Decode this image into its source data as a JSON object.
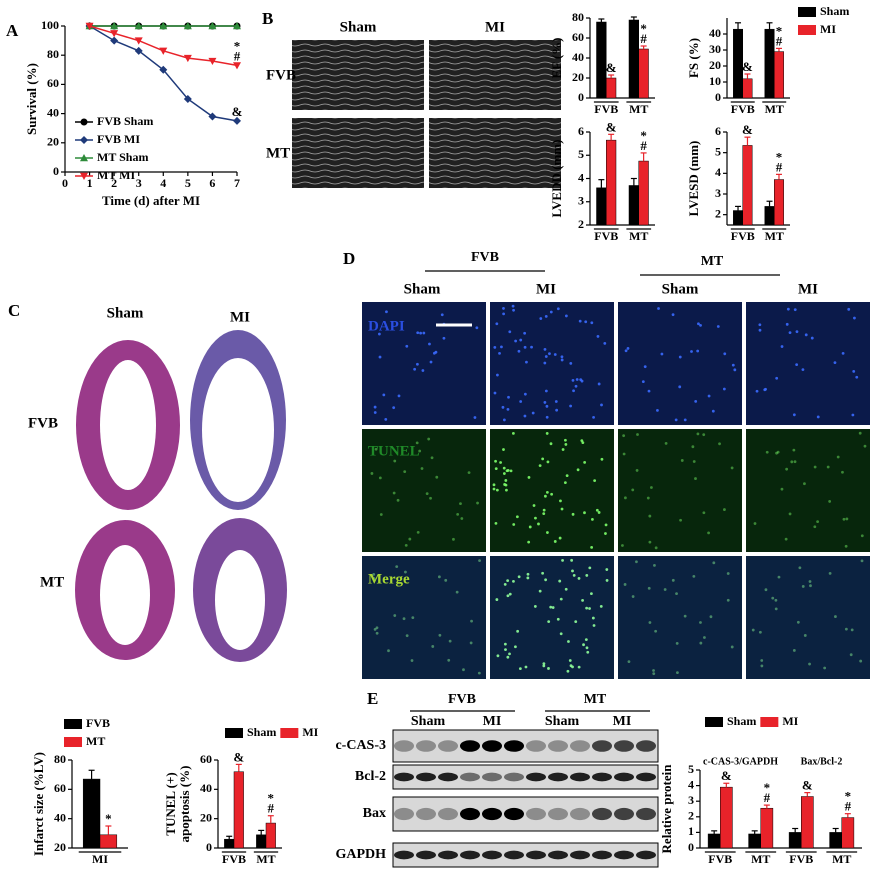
{
  "labels": {
    "panels": [
      "A",
      "B",
      "C",
      "D",
      "E"
    ],
    "b": {
      "sham": "Sham",
      "mi": "MI",
      "fvb": "FVB",
      "mt": "MT"
    },
    "c": {
      "sham": "Sham",
      "mi": "MI",
      "fvb": "FVB",
      "mt": "MT"
    },
    "d": {
      "fvb": "FVB",
      "mt": "MT",
      "sham1": "Sham",
      "mi1": "MI",
      "sham2": "Sham",
      "mi2": "MI",
      "dapi": "DAPI",
      "tunel": "TUNEL",
      "merge": "Merge"
    },
    "e": {
      "fvb": "FVB",
      "mt": "MT",
      "sham1": "Sham",
      "mi1": "MI",
      "sham2": "Sham",
      "mi2": "MI",
      "rows": [
        "c-CAS-3",
        "Bcl-2",
        "Bax",
        "GAPDH"
      ]
    }
  },
  "chart_data": [
    {
      "type": "line",
      "ylabel": "Survival (%)",
      "xlabel": "Time (d) after MI",
      "x": [
        1,
        2,
        3,
        4,
        5,
        6,
        7
      ],
      "xlim": [
        0,
        7
      ],
      "xticks": [
        0,
        1,
        2,
        3,
        4,
        5,
        6,
        7
      ],
      "ylim": [
        0,
        100
      ],
      "yticks": [
        0,
        20,
        40,
        60,
        80,
        100
      ],
      "legend": true,
      "series": [
        {
          "name": "FVB Sham",
          "color": "#000000",
          "marker": "circle",
          "values": [
            100,
            100,
            100,
            100,
            100,
            100,
            100
          ]
        },
        {
          "name": "FVB MI",
          "color": "#1f3a7a",
          "marker": "diamond",
          "values": [
            100,
            90,
            83,
            70,
            50,
            38,
            35
          ],
          "annotations": [
            null,
            null,
            null,
            null,
            null,
            null,
            [
              "&"
            ]
          ]
        },
        {
          "name": "MT Sham",
          "color": "#2e8b3a",
          "marker": "triangle",
          "values": [
            100,
            100,
            100,
            100,
            100,
            100,
            100
          ]
        },
        {
          "name": "MT MI",
          "color": "#e8232a",
          "marker": "triangle-down",
          "values": [
            100,
            95,
            90,
            83,
            78,
            76,
            73
          ],
          "annotations": [
            null,
            null,
            null,
            null,
            null,
            null,
            [
              "*",
              "#"
            ]
          ]
        }
      ]
    },
    {
      "type": "bar",
      "ylabel": "EF (%)",
      "categories": [
        "FVB",
        "MT"
      ],
      "ylim": [
        0,
        80
      ],
      "yticks": [
        0,
        20,
        40,
        60,
        80
      ],
      "legend": true,
      "series": [
        {
          "name": "Sham",
          "color": "#000000",
          "values": [
            76,
            78
          ],
          "errors": [
            3,
            3
          ]
        },
        {
          "name": "MI",
          "color": "#e8232a",
          "values": [
            20,
            49
          ],
          "errors": [
            3,
            3
          ],
          "annotations": [
            [
              "&"
            ],
            [
              "*",
              "#"
            ]
          ]
        }
      ]
    },
    {
      "type": "bar",
      "ylabel": "FS (%)",
      "categories": [
        "FVB",
        "MT"
      ],
      "ylim": [
        0,
        50
      ],
      "yticks": [
        0,
        10,
        20,
        30,
        40
      ],
      "series": [
        {
          "name": "Sham",
          "color": "#000000",
          "values": [
            43,
            43
          ],
          "errors": [
            4,
            4
          ]
        },
        {
          "name": "MI",
          "color": "#e8232a",
          "values": [
            12,
            29
          ],
          "errors": [
            3,
            2
          ],
          "annotations": [
            [
              "&"
            ],
            [
              "*",
              "#"
            ]
          ]
        }
      ]
    },
    {
      "type": "bar",
      "ylabel": "LVEDD (mm)",
      "categories": [
        "FVB",
        "MT"
      ],
      "ylim": [
        2,
        6
      ],
      "yticks": [
        2,
        3,
        4,
        5,
        6
      ],
      "series": [
        {
          "name": "Sham",
          "color": "#000000",
          "values": [
            3.6,
            3.7
          ],
          "errors": [
            0.35,
            0.3
          ]
        },
        {
          "name": "MI",
          "color": "#e8232a",
          "values": [
            5.65,
            4.75
          ],
          "errors": [
            0.25,
            0.35
          ],
          "annotations": [
            [
              "&"
            ],
            [
              "*",
              "#"
            ]
          ]
        }
      ]
    },
    {
      "type": "bar",
      "ylabel": "LVESD (mm)",
      "categories": [
        "FVB",
        "MT"
      ],
      "ylim": [
        1.5,
        6
      ],
      "yticks": [
        2,
        3,
        4,
        5,
        6
      ],
      "series": [
        {
          "name": "Sham",
          "color": "#000000",
          "values": [
            2.2,
            2.4
          ],
          "errors": [
            0.2,
            0.25
          ]
        },
        {
          "name": "MI",
          "color": "#e8232a",
          "values": [
            5.35,
            3.7
          ],
          "errors": [
            0.4,
            0.25
          ],
          "annotations": [
            [
              "&"
            ],
            [
              "*",
              "#"
            ]
          ]
        }
      ]
    },
    {
      "type": "bar",
      "ylabel": "Infarct size (%LV)",
      "categories": [
        "MI"
      ],
      "ylim": [
        20,
        80
      ],
      "yticks": [
        20,
        40,
        60,
        80
      ],
      "legend": true,
      "series": [
        {
          "name": "FVB",
          "color": "#000000",
          "values": [
            67
          ],
          "errors": [
            6
          ]
        },
        {
          "name": "MT",
          "color": "#e8232a",
          "values": [
            29
          ],
          "errors": [
            6
          ],
          "annotations": [
            [
              "*"
            ]
          ]
        }
      ]
    },
    {
      "type": "bar",
      "ylabel": [
        "TUNEL (+)",
        "apoptosis (%)"
      ],
      "categories": [
        "FVB",
        "MT"
      ],
      "ylim": [
        0,
        60
      ],
      "yticks": [
        0,
        20,
        40,
        60
      ],
      "legend": true,
      "series": [
        {
          "name": "Sham",
          "color": "#000000",
          "values": [
            6,
            9
          ],
          "errors": [
            2,
            3
          ]
        },
        {
          "name": "MI",
          "color": "#e8232a",
          "values": [
            52,
            17
          ],
          "errors": [
            5,
            5
          ],
          "annotations": [
            [
              "&"
            ],
            [
              "*",
              "#"
            ]
          ]
        }
      ]
    },
    {
      "type": "bar",
      "ylabel": "Relative protein",
      "groups": [
        "c-CAS-3/GAPDH",
        "Bax/Bcl-2"
      ],
      "categories": [
        "FVB",
        "MT",
        "FVB",
        "MT"
      ],
      "ylim": [
        0,
        5
      ],
      "yticks": [
        0,
        1,
        2,
        3,
        4,
        5
      ],
      "legend": true,
      "series": [
        {
          "name": "Sham",
          "color": "#000000",
          "values": [
            0.9,
            0.9,
            1,
            1
          ],
          "errors": [
            0.2,
            0.2,
            0.25,
            0.25
          ]
        },
        {
          "name": "MI",
          "color": "#e8232a",
          "values": [
            3.9,
            2.55,
            3.3,
            1.95
          ],
          "errors": [
            0.25,
            0.2,
            0.25,
            0.25
          ],
          "annotations": [
            [
              "&"
            ],
            [
              "*",
              "#"
            ],
            [
              "&"
            ],
            [
              "*",
              "#"
            ]
          ]
        }
      ]
    }
  ]
}
